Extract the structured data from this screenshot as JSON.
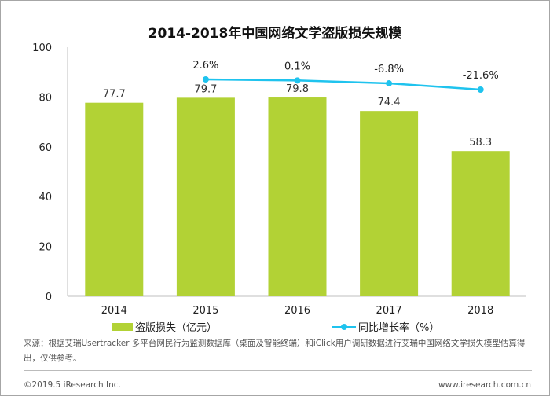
{
  "chart_data": {
    "type": "bar+line",
    "title": "2014-2018年中国网络文学盗版损失规模",
    "categories": [
      "2014",
      "2015",
      "2016",
      "2017",
      "2018"
    ],
    "ylim": [
      0,
      100
    ],
    "yticks": [
      0,
      20,
      40,
      60,
      80,
      100
    ],
    "grid": false,
    "legend_placement": "bottom",
    "series": [
      {
        "name": "盗版损失（亿元）",
        "type": "bar",
        "color": "#b2d235",
        "values": [
          77.7,
          79.7,
          79.8,
          74.4,
          58.3
        ],
        "labels": [
          "77.7",
          "79.7",
          "79.8",
          "74.4",
          "58.3"
        ]
      },
      {
        "name": "同比增长率（%）",
        "type": "line",
        "color": "#1fc3ee",
        "values": [
          null,
          2.6,
          0.1,
          -6.8,
          -21.6
        ],
        "labels": [
          "",
          "2.6%",
          "0.1%",
          "-6.8%",
          "-21.6%"
        ],
        "axis": "secondary-hidden"
      }
    ]
  },
  "source": "来源：根据艾瑞Usertracker 多平台网民行为监测数据库（桌面及智能终端）和iClick用户调研数据进行艾瑞中国网络文学损失模型估算得出，仅供参考。",
  "footer": {
    "copyright": "©2019.5 iResearch Inc.",
    "website": "www.iresearch.com.cn"
  }
}
